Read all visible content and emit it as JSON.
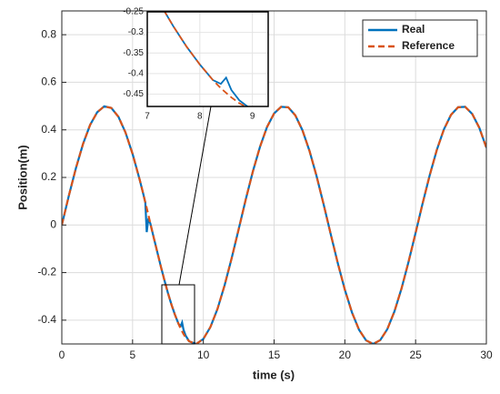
{
  "chart_data": {
    "type": "line",
    "xlabel": "time (s)",
    "ylabel": "Position(m)",
    "x": [
      0,
      0.5,
      1,
      1.5,
      2,
      2.5,
      3,
      3.5,
      4,
      4.5,
      5,
      5.5,
      5.75,
      5.9,
      6,
      6.1,
      6.25,
      6.5,
      7,
      7.25,
      7.5,
      7.75,
      8,
      8.25,
      8.4,
      8.5,
      8.6,
      8.75,
      9,
      9.5,
      10,
      10.5,
      11,
      11.5,
      12,
      12.5,
      13,
      13.5,
      14,
      14.5,
      15,
      15.5,
      16,
      16.5,
      17,
      17.5,
      18,
      18.5,
      19,
      19.5,
      20,
      20.5,
      21,
      21.5,
      22,
      22.5,
      23,
      23.5,
      24,
      24.5,
      25,
      25.5,
      26,
      26.5,
      27,
      27.5,
      28,
      28.5,
      29,
      29.5,
      30
    ],
    "series": [
      {
        "name": "Real",
        "color": "#0072bd",
        "dashed": false,
        "values": [
          0,
          0.124,
          0.24,
          0.341,
          0.421,
          0.474,
          0.499,
          0.492,
          0.455,
          0.389,
          0.299,
          0.191,
          0.132,
          0.095,
          -0.03,
          0.02,
          0.008,
          -0.054,
          -0.175,
          -0.232,
          -0.286,
          -0.335,
          -0.378,
          -0.416,
          -0.425,
          -0.41,
          -0.44,
          -0.465,
          -0.489,
          -0.5,
          -0.479,
          -0.429,
          -0.353,
          -0.254,
          -0.14,
          -0.017,
          0.108,
          0.225,
          0.328,
          0.412,
          0.469,
          0.497,
          0.495,
          0.461,
          0.399,
          0.312,
          0.206,
          0.087,
          -0.038,
          -0.16,
          -0.272,
          -0.367,
          -0.44,
          -0.485,
          -0.5,
          -0.484,
          -0.438,
          -0.364,
          -0.268,
          -0.155,
          -0.033,
          0.092,
          0.21,
          0.316,
          0.402,
          0.463,
          0.495,
          0.497,
          0.467,
          0.409,
          0.325
        ]
      },
      {
        "name": "Reference",
        "color": "#d95319",
        "dashed": true,
        "values": [
          0,
          0.124,
          0.24,
          0.341,
          0.421,
          0.474,
          0.499,
          0.492,
          0.455,
          0.389,
          0.299,
          0.191,
          0.132,
          0.095,
          0.071,
          0.046,
          0.008,
          -0.054,
          -0.175,
          -0.232,
          -0.286,
          -0.335,
          -0.378,
          -0.416,
          -0.436,
          -0.447,
          -0.458,
          -0.472,
          -0.489,
          -0.5,
          -0.479,
          -0.429,
          -0.353,
          -0.254,
          -0.14,
          -0.017,
          0.108,
          0.225,
          0.328,
          0.412,
          0.469,
          0.497,
          0.495,
          0.461,
          0.399,
          0.312,
          0.206,
          0.087,
          -0.038,
          -0.16,
          -0.272,
          -0.367,
          -0.44,
          -0.485,
          -0.5,
          -0.484,
          -0.438,
          -0.364,
          -0.268,
          -0.155,
          -0.033,
          0.092,
          0.21,
          0.316,
          0.402,
          0.463,
          0.495,
          0.497,
          0.467,
          0.409,
          0.325
        ]
      }
    ],
    "xlim": [
      0,
      30
    ],
    "xticks": [
      0,
      5,
      10,
      15,
      20,
      25,
      30
    ],
    "ylim": [
      -0.5,
      0.9
    ],
    "yticks": [
      -0.4,
      -0.2,
      0,
      0.2,
      0.4,
      0.6,
      0.8
    ],
    "grid": true,
    "legend": "top-right",
    "inset": {
      "xlim": [
        7,
        9.3
      ],
      "ylim": [
        -0.48,
        -0.25
      ],
      "xticks": [
        7,
        8,
        9
      ],
      "yticks": [
        -0.45,
        -0.4,
        -0.35,
        -0.3,
        -0.25
      ]
    }
  }
}
